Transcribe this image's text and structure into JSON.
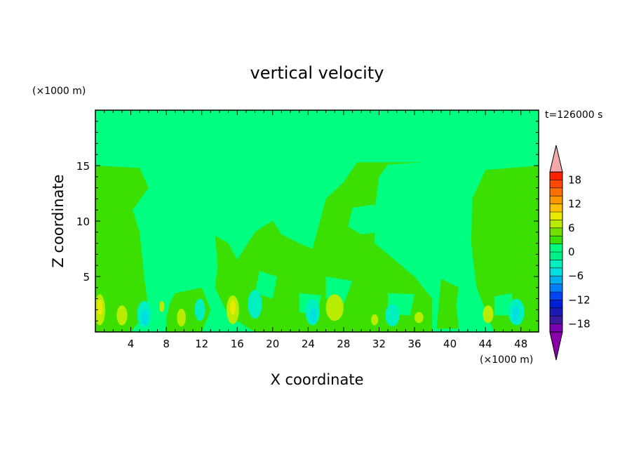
{
  "chart_data": {
    "type": "heatmap",
    "title": "vertical velocity",
    "xlabel": "X coordinate",
    "ylabel": "Z coordinate",
    "x_unit": "(×1000 m)",
    "y_unit": "(×1000 m)",
    "time_label": "t=126000 s",
    "xlim": [
      0,
      50
    ],
    "ylim": [
      0,
      20
    ],
    "x_ticks": [
      4,
      8,
      12,
      16,
      20,
      24,
      28,
      32,
      36,
      40,
      44,
      48
    ],
    "y_ticks": [
      5,
      10,
      15
    ],
    "colorbar": {
      "levels": [
        -20,
        -18,
        -16,
        -14,
        -12,
        -10,
        -8,
        -6,
        -4,
        -2,
        0,
        2,
        4,
        6,
        8,
        10,
        12,
        14,
        16,
        18,
        20
      ],
      "labels": [
        18,
        12,
        6,
        0,
        -6,
        -12,
        -18
      ],
      "colors": [
        "#7a00b0",
        "#3a1aa0",
        "#1a1ab4",
        "#0020d8",
        "#0046f0",
        "#0080f8",
        "#00b0f0",
        "#00e0e0",
        "#00f0c0",
        "#00f088",
        "#00ff80",
        "#3ce000",
        "#70e000",
        "#b8ec00",
        "#e8ea00",
        "#ffc000",
        "#ff9800",
        "#ff7000",
        "#ff4800",
        "#ff2000"
      ],
      "extend_low_color": "#8a00a8",
      "extend_high_color": "#f4a8a8"
    },
    "background_color": "#00ff80",
    "regions": [
      {
        "value": 1,
        "color": "#3ce000",
        "polygon": [
          [
            0,
            15
          ],
          [
            5,
            14.8
          ],
          [
            6,
            13
          ],
          [
            4.2,
            11
          ],
          [
            5,
            9
          ],
          [
            5.5,
            5
          ],
          [
            6,
            2
          ],
          [
            4,
            0
          ],
          [
            0,
            0
          ]
        ]
      },
      {
        "value": 1,
        "color": "#3ce000",
        "polygon": [
          [
            50,
            15
          ],
          [
            44,
            14.6
          ],
          [
            42.5,
            12
          ],
          [
            42.4,
            8
          ],
          [
            43,
            4
          ],
          [
            45,
            0
          ],
          [
            50,
            0
          ]
        ]
      },
      {
        "value": 1,
        "color": "#3ce000",
        "polygon": [
          [
            13.5,
            8.7
          ],
          [
            15,
            8
          ],
          [
            16,
            6.5
          ],
          [
            18,
            9
          ],
          [
            19.5,
            9.8
          ],
          [
            20,
            10
          ],
          [
            21,
            8.8
          ],
          [
            23,
            8
          ],
          [
            24.5,
            7.5
          ],
          [
            25,
            9
          ],
          [
            26,
            12
          ],
          [
            28,
            13.5
          ],
          [
            29.5,
            15.3
          ],
          [
            37,
            15.3
          ],
          [
            33,
            15.1
          ],
          [
            32,
            14
          ],
          [
            31.5,
            11
          ],
          [
            31.5,
            8
          ],
          [
            33,
            7
          ],
          [
            36,
            5
          ],
          [
            38,
            3
          ],
          [
            38,
            0
          ],
          [
            18,
            0
          ],
          [
            15,
            1.5
          ],
          [
            13.5,
            4
          ],
          [
            13.8,
            6
          ]
        ]
      },
      {
        "value": 1,
        "color": "#3ce000",
        "polygon": [
          [
            9,
            3.5
          ],
          [
            12,
            4
          ],
          [
            13,
            2
          ],
          [
            12,
            0
          ],
          [
            8,
            0
          ],
          [
            8,
            2
          ]
        ]
      },
      {
        "value": 1,
        "color": "#3ce000",
        "polygon": [
          [
            39,
            4.8
          ],
          [
            41,
            4
          ],
          [
            40.7,
            2.5
          ],
          [
            41,
            0.3
          ],
          [
            38.5,
            0.3
          ]
        ]
      },
      {
        "value": 0,
        "color": "#00ff80",
        "polygon": [
          [
            29,
            11.2
          ],
          [
            31.5,
            11.5
          ],
          [
            32,
            9
          ],
          [
            30,
            8.8
          ],
          [
            28.5,
            9.5
          ]
        ]
      },
      {
        "value": 0,
        "color": "#00ff80",
        "polygon": [
          [
            18.5,
            5.5
          ],
          [
            20.5,
            5
          ],
          [
            20,
            3
          ],
          [
            18,
            3.5
          ]
        ]
      },
      {
        "value": 0,
        "color": "#00ff80",
        "polygon": [
          [
            26,
            5
          ],
          [
            29,
            4.6
          ],
          [
            28,
            2.5
          ],
          [
            26,
            3
          ]
        ]
      },
      {
        "value": 0,
        "color": "#00ff80",
        "polygon": [
          [
            6.5,
            3
          ],
          [
            8.5,
            3
          ],
          [
            8,
            1.2
          ],
          [
            6.5,
            1.5
          ]
        ]
      },
      {
        "value": 0,
        "color": "#00ff80",
        "polygon": [
          [
            23,
            3.5
          ],
          [
            25.5,
            3.3
          ],
          [
            25,
            1.5
          ],
          [
            23,
            1.8
          ]
        ]
      },
      {
        "value": 0,
        "color": "#00ff80",
        "polygon": [
          [
            33,
            3.5
          ],
          [
            36,
            3.4
          ],
          [
            35.5,
            1.5
          ],
          [
            33,
            1.6
          ]
        ]
      },
      {
        "value": 0,
        "color": "#00ff80",
        "polygon": [
          [
            45,
            3.2
          ],
          [
            47,
            3.5
          ],
          [
            47,
            1.5
          ],
          [
            45,
            1.5
          ]
        ]
      }
    ],
    "blobs": [
      {
        "value": 4,
        "color": "#b8ec00",
        "x": 0.5,
        "y": 2.0,
        "rx": 0.6,
        "ry": 1.4
      },
      {
        "value": 6,
        "color": "#e8ea00",
        "x": 0.5,
        "y": 2.2,
        "rx": 0.3,
        "ry": 0.7
      },
      {
        "value": 4,
        "color": "#b8ec00",
        "x": 3.0,
        "y": 1.5,
        "rx": 0.6,
        "ry": 0.9
      },
      {
        "value": 4,
        "color": "#b8ec00",
        "x": 7.5,
        "y": 2.3,
        "rx": 0.3,
        "ry": 0.5
      },
      {
        "value": 4,
        "color": "#b8ec00",
        "x": 9.7,
        "y": 1.3,
        "rx": 0.5,
        "ry": 0.8
      },
      {
        "value": 4,
        "color": "#b8ec00",
        "x": 15.5,
        "y": 2.0,
        "rx": 0.7,
        "ry": 1.3
      },
      {
        "value": 6,
        "color": "#e8ea00",
        "x": 15.5,
        "y": 2.2,
        "rx": 0.3,
        "ry": 0.7
      },
      {
        "value": 4,
        "color": "#b8ec00",
        "x": 27.0,
        "y": 2.2,
        "rx": 1.0,
        "ry": 1.2
      },
      {
        "value": 4,
        "color": "#b8ec00",
        "x": 31.5,
        "y": 1.1,
        "rx": 0.4,
        "ry": 0.5
      },
      {
        "value": 4,
        "color": "#b8ec00",
        "x": 36.5,
        "y": 1.3,
        "rx": 0.5,
        "ry": 0.5
      },
      {
        "value": 4,
        "color": "#b8ec00",
        "x": 44.3,
        "y": 1.6,
        "rx": 0.6,
        "ry": 0.8
      },
      {
        "value": -2,
        "color": "#00f0c0",
        "x": 5.5,
        "y": 1.6,
        "rx": 0.8,
        "ry": 1.2
      },
      {
        "value": -4,
        "color": "#00e0e0",
        "x": 5.6,
        "y": 1.3,
        "rx": 0.4,
        "ry": 0.7
      },
      {
        "value": -2,
        "color": "#00f0c0",
        "x": 11.8,
        "y": 2.0,
        "rx": 0.6,
        "ry": 1.0
      },
      {
        "value": -2,
        "color": "#00f0c0",
        "x": 18.0,
        "y": 2.5,
        "rx": 0.8,
        "ry": 1.3
      },
      {
        "value": -2,
        "color": "#00f0c0",
        "x": 24.5,
        "y": 1.8,
        "rx": 0.8,
        "ry": 1.2
      },
      {
        "value": -4,
        "color": "#00e0e0",
        "x": 24.6,
        "y": 1.5,
        "rx": 0.4,
        "ry": 0.7
      },
      {
        "value": -2,
        "color": "#00f0c0",
        "x": 33.5,
        "y": 1.5,
        "rx": 0.8,
        "ry": 1.0
      },
      {
        "value": -2,
        "color": "#00f0c0",
        "x": 47.5,
        "y": 1.8,
        "rx": 0.9,
        "ry": 1.2
      },
      {
        "value": -4,
        "color": "#00e0e0",
        "x": 47.4,
        "y": 1.6,
        "rx": 0.4,
        "ry": 0.7
      }
    ]
  }
}
